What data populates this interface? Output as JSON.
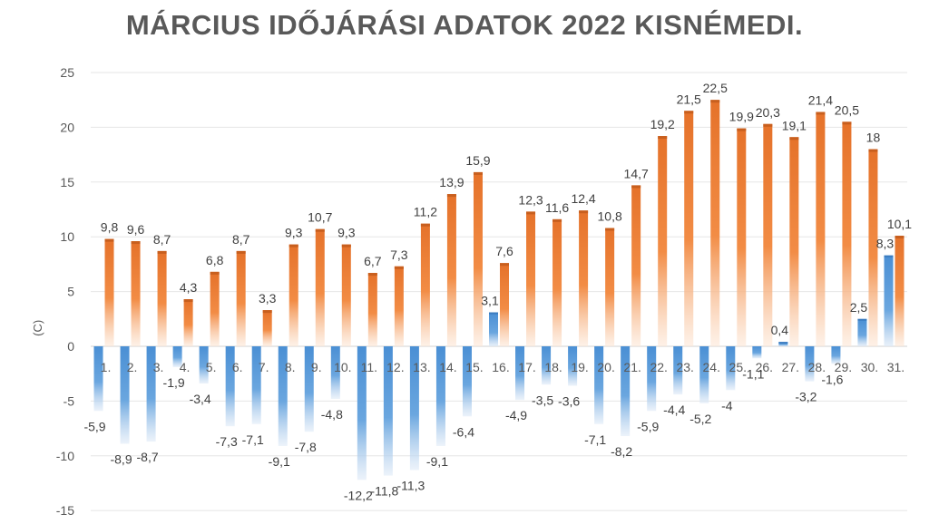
{
  "chart_data": {
    "type": "bar",
    "title": "MÁRCIUS IDŐJÁRÁSI ADATOK 2022 KISNÉMEDI.",
    "ylabel": "(C)",
    "xlabel": "",
    "ylim": [
      -15,
      25
    ],
    "yticks": [
      -15,
      -10,
      -5,
      0,
      5,
      10,
      15,
      20,
      25
    ],
    "grid": true,
    "categories": [
      "1.",
      "2.",
      "3.",
      "4.",
      "5.",
      "6.",
      "7.",
      "8.",
      "9.",
      "10.",
      "11.",
      "12.",
      "13.",
      "14.",
      "15.",
      "16.",
      "17.",
      "18.",
      "19.",
      "20.",
      "21.",
      "22.",
      "23.",
      "24.",
      "25.",
      "26.",
      "27.",
      "28.",
      "29.",
      "30.",
      "31."
    ],
    "series": [
      {
        "color": "#5b9bd5",
        "values": [
          -5.9,
          -8.9,
          -8.7,
          -1.9,
          -3.4,
          -7.3,
          -7.1,
          -9.1,
          -7.8,
          -4.8,
          -12.2,
          -11.8,
          -11.3,
          -9.1,
          -6.4,
          3.1,
          -4.9,
          -3.5,
          -3.6,
          -7.1,
          -8.2,
          -5.9,
          -4.4,
          -5.2,
          -4,
          -1.1,
          0.4,
          -3.2,
          -1.6,
          2.5,
          8.3
        ],
        "labels": [
          "-5,9",
          "-8,9",
          "-8,7",
          "-1,9",
          "-3,4",
          "-7,3",
          "-7,1",
          "-9,1",
          "-7,8",
          "-4,8",
          "-12,2",
          "-11,8",
          "-11,3",
          "-9,1",
          "-6,4",
          "3,1",
          "-4,9",
          "-3,5",
          "-3,6",
          "-7,1",
          "-8,2",
          "-5,9",
          "-4,4",
          "-5,2",
          "-4",
          "-1,1",
          "0,4",
          "-3,2",
          "-1,6",
          "2,5",
          "8,3"
        ]
      },
      {
        "color": "#ed7d31",
        "values": [
          9.8,
          9.6,
          8.7,
          4.3,
          6.8,
          8.7,
          3.3,
          9.3,
          10.7,
          9.3,
          6.7,
          7.3,
          11.2,
          13.9,
          15.9,
          7.6,
          12.3,
          11.6,
          12.4,
          10.8,
          14.7,
          19.2,
          21.5,
          22.5,
          19.9,
          20.3,
          19.1,
          21.4,
          20.5,
          18,
          10.1
        ],
        "labels": [
          "9,8",
          "9,6",
          "8,7",
          "4,3",
          "6,8",
          "8,7",
          "3,3",
          "9,3",
          "10,7",
          "9,3",
          "6,7",
          "7,3",
          "11,2",
          "13,9",
          "15,9",
          "7,6",
          "12,3",
          "11,6",
          "12,4",
          "10,8",
          "14,7",
          "19,2",
          "21,5",
          "22,5",
          "19,9",
          "20,3",
          "19,1",
          "21,4",
          "20,5",
          "18",
          "10,1"
        ]
      }
    ]
  }
}
